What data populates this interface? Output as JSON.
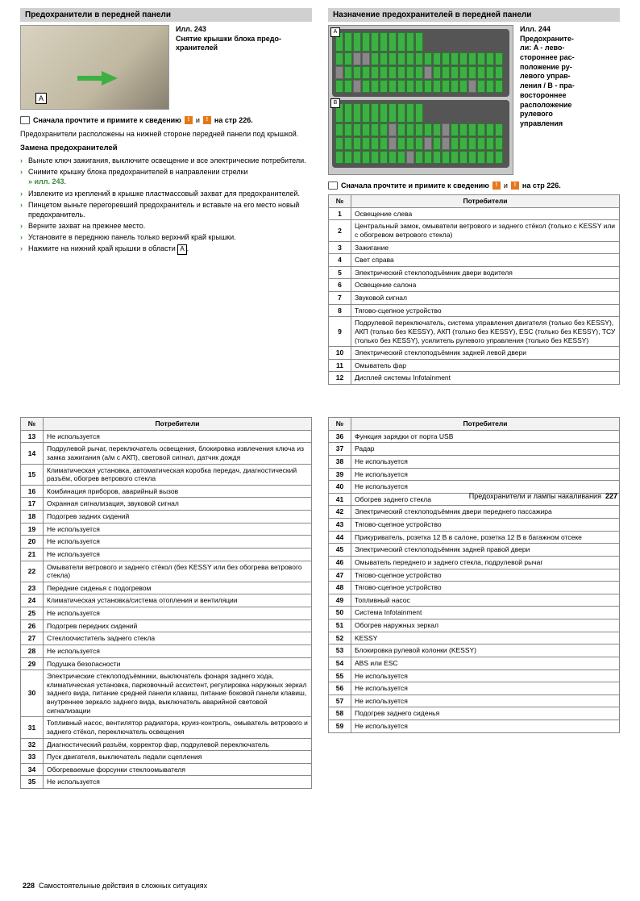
{
  "left_top": {
    "header": "Предохранители в передней панели",
    "fig243": {
      "num": "Илл. 243",
      "caption": "Снятие крышки блока предо-\nхранителей"
    },
    "note_prefix": "Сначала прочтите и примите к сведению",
    "note_page": "на стр 226.",
    "intro": "Предохранители расположены на нижней стороне передней панели под крышкой.",
    "sub": "Замена предохранителей",
    "bullets": [
      "Выньте ключ зажигания, выключите освещение и все электрические потребители.",
      "Снимите крышку блока предохранителей в направлении стрелки",
      "Извлеките из креплений в крышке пластмассовый захват для предохранителей.",
      "Пинцетом выньте перегоревший предохранитель и вставьте на его место новый предохранитель.",
      "Верните захват на прежнее место.",
      "Установите в переднюю панель только верхний край крышки.",
      "Нажмите на нижний край крышки в области"
    ],
    "ref243": "» илл. 243",
    "refA": "A"
  },
  "right_top": {
    "header": "Назначение предохранителей в передней панели",
    "fig244": {
      "num": "Илл. 244",
      "caption": "Предохраните-\nли: A - лево-\nстороннее рас-\nположение ру-\nлевого управ-\nления / B - пра-\nвостороннее\nрасположение\nрулевого\nуправления"
    },
    "note_prefix": "Сначала прочтите и примите к сведению",
    "note_page": "на стр 226.",
    "table_head": {
      "col1": "№",
      "col2": "Потребители"
    },
    "rows": [
      [
        "1",
        "Освещение слева"
      ],
      [
        "2",
        "Центральный замок, омыватели ветрового и заднего стёкол (только с KESSY или с обогревом ветрового стекла)"
      ],
      [
        "3",
        "Зажигание"
      ],
      [
        "4",
        "Свет справа"
      ],
      [
        "5",
        "Электрический стеклоподъёмник двери водителя"
      ],
      [
        "6",
        "Освещение салона"
      ],
      [
        "7",
        "Звуковой сигнал"
      ],
      [
        "8",
        "Тягово-сцепное устройство"
      ],
      [
        "9",
        "Подрулевой переключатель, система управления двигателя (только без KESSY), АКП (только без KESSY), АКП (только без KESSY), ESC (только без KESSY), ТСУ (только без KESSY), усилитель рулевого управления (только без KESSY)"
      ],
      [
        "10",
        "Электрический стеклоподъёмник задней левой двери"
      ],
      [
        "11",
        "Омыватель фар"
      ],
      [
        "12",
        "Дисплей системы Infotainment"
      ]
    ]
  },
  "footer_right": {
    "title": "Предохранители и лампы накаливания",
    "page": "227"
  },
  "lower_left": {
    "head": {
      "col1": "№",
      "col2": "Потребители"
    },
    "rows": [
      [
        "13",
        "Не используется"
      ],
      [
        "14",
        "Подрулевой рычаг, переключатель освещения, блокировка извлечения ключа из замка зажигания (а/м с АКП), световой сигнал, датчик дождя"
      ],
      [
        "15",
        "Климатическая установка, автоматическая коробка передач, диагностический разъём, обогрев ветрового стекла"
      ],
      [
        "16",
        "Комбинация приборов, аварийный вызов"
      ],
      [
        "17",
        "Охранная сигнализация, звуковой сигнал"
      ],
      [
        "18",
        "Подогрев задних сидений"
      ],
      [
        "19",
        "Не используется"
      ],
      [
        "20",
        "Не используется"
      ],
      [
        "21",
        "Не используется"
      ],
      [
        "22",
        "Омыватели ветрового и заднего стёкол (без KESSY или без обогрева ветрового стекла)"
      ],
      [
        "23",
        "Передние сиденья с подогревом"
      ],
      [
        "24",
        "Климатическая установка/система отопления и вентиляции"
      ],
      [
        "25",
        "Не используется"
      ],
      [
        "26",
        "Подогрев передних сидений"
      ],
      [
        "27",
        "Стеклоочиститель заднего стекла"
      ],
      [
        "28",
        "Не используется"
      ],
      [
        "29",
        "Подушка безопасности"
      ],
      [
        "30",
        "Электрические стеклоподъёмники, выключатель фонаря заднего хода, климатическая установка, парковочный ассистент, регулировка наружных зеркал заднего вида, питание средней панели клавиш, питание боковой панели клавиш, внутреннее зеркало заднего вида, выключатель аварийной световой сигнализации"
      ],
      [
        "31",
        "Топливный насос, вентилятор радиатора, круиз-контроль, омыватель ветрового и заднего стёкол, переключатель освещения"
      ],
      [
        "32",
        "Диагностический разъём, корректор фар, подрулевой переключатель"
      ],
      [
        "33",
        "Пуск двигателя, выключатель педали сцепления"
      ],
      [
        "34",
        "Обогреваемые форсунки стеклоомывателя"
      ],
      [
        "35",
        "Не используется"
      ]
    ]
  },
  "lower_right": {
    "head": {
      "col1": "№",
      "col2": "Потребители"
    },
    "rows": [
      [
        "36",
        "Функция зарядки от порта USB"
      ],
      [
        "37",
        "Радар"
      ],
      [
        "38",
        "Не используется"
      ],
      [
        "39",
        "Не используется"
      ],
      [
        "40",
        "Не используется"
      ],
      [
        "41",
        "Обогрев заднего стекла"
      ],
      [
        "42",
        "Электрический стеклоподъёмник двери переднего пассажира"
      ],
      [
        "43",
        "Тягово-сцепное устройство"
      ],
      [
        "44",
        "Прикуриватель, розетка 12 В в салоне, розетка 12 В в багажном отсеке"
      ],
      [
        "45",
        "Электрический стеклоподъёмник задней правой двери"
      ],
      [
        "46",
        "Омыватель переднего и заднего стекла, подрулевой рычаг"
      ],
      [
        "47",
        "Тягово-сцепное устройство"
      ],
      [
        "48",
        "Тягово-сцепное устройство"
      ],
      [
        "49",
        "Топливный насос"
      ],
      [
        "50",
        "Система Infotainment"
      ],
      [
        "51",
        "Обогрев наружных зеркал"
      ],
      [
        "52",
        "KESSY"
      ],
      [
        "53",
        "Блокировка рулевой колонки (KESSY)"
      ],
      [
        "54",
        "ABS или ESC"
      ],
      [
        "55",
        "Не используется"
      ],
      [
        "56",
        "Не используется"
      ],
      [
        "57",
        "Не используется"
      ],
      [
        "58",
        "Подогрев заднего сиденья"
      ],
      [
        "59",
        "Не используется"
      ]
    ]
  },
  "footer_left": {
    "page": "228",
    "title": "Самостоятельные действия в сложных ситуациях"
  },
  "style": {
    "fuse_color": "#3cb043",
    "header_bg": "#d0d0d0",
    "orange": "#e67817"
  }
}
